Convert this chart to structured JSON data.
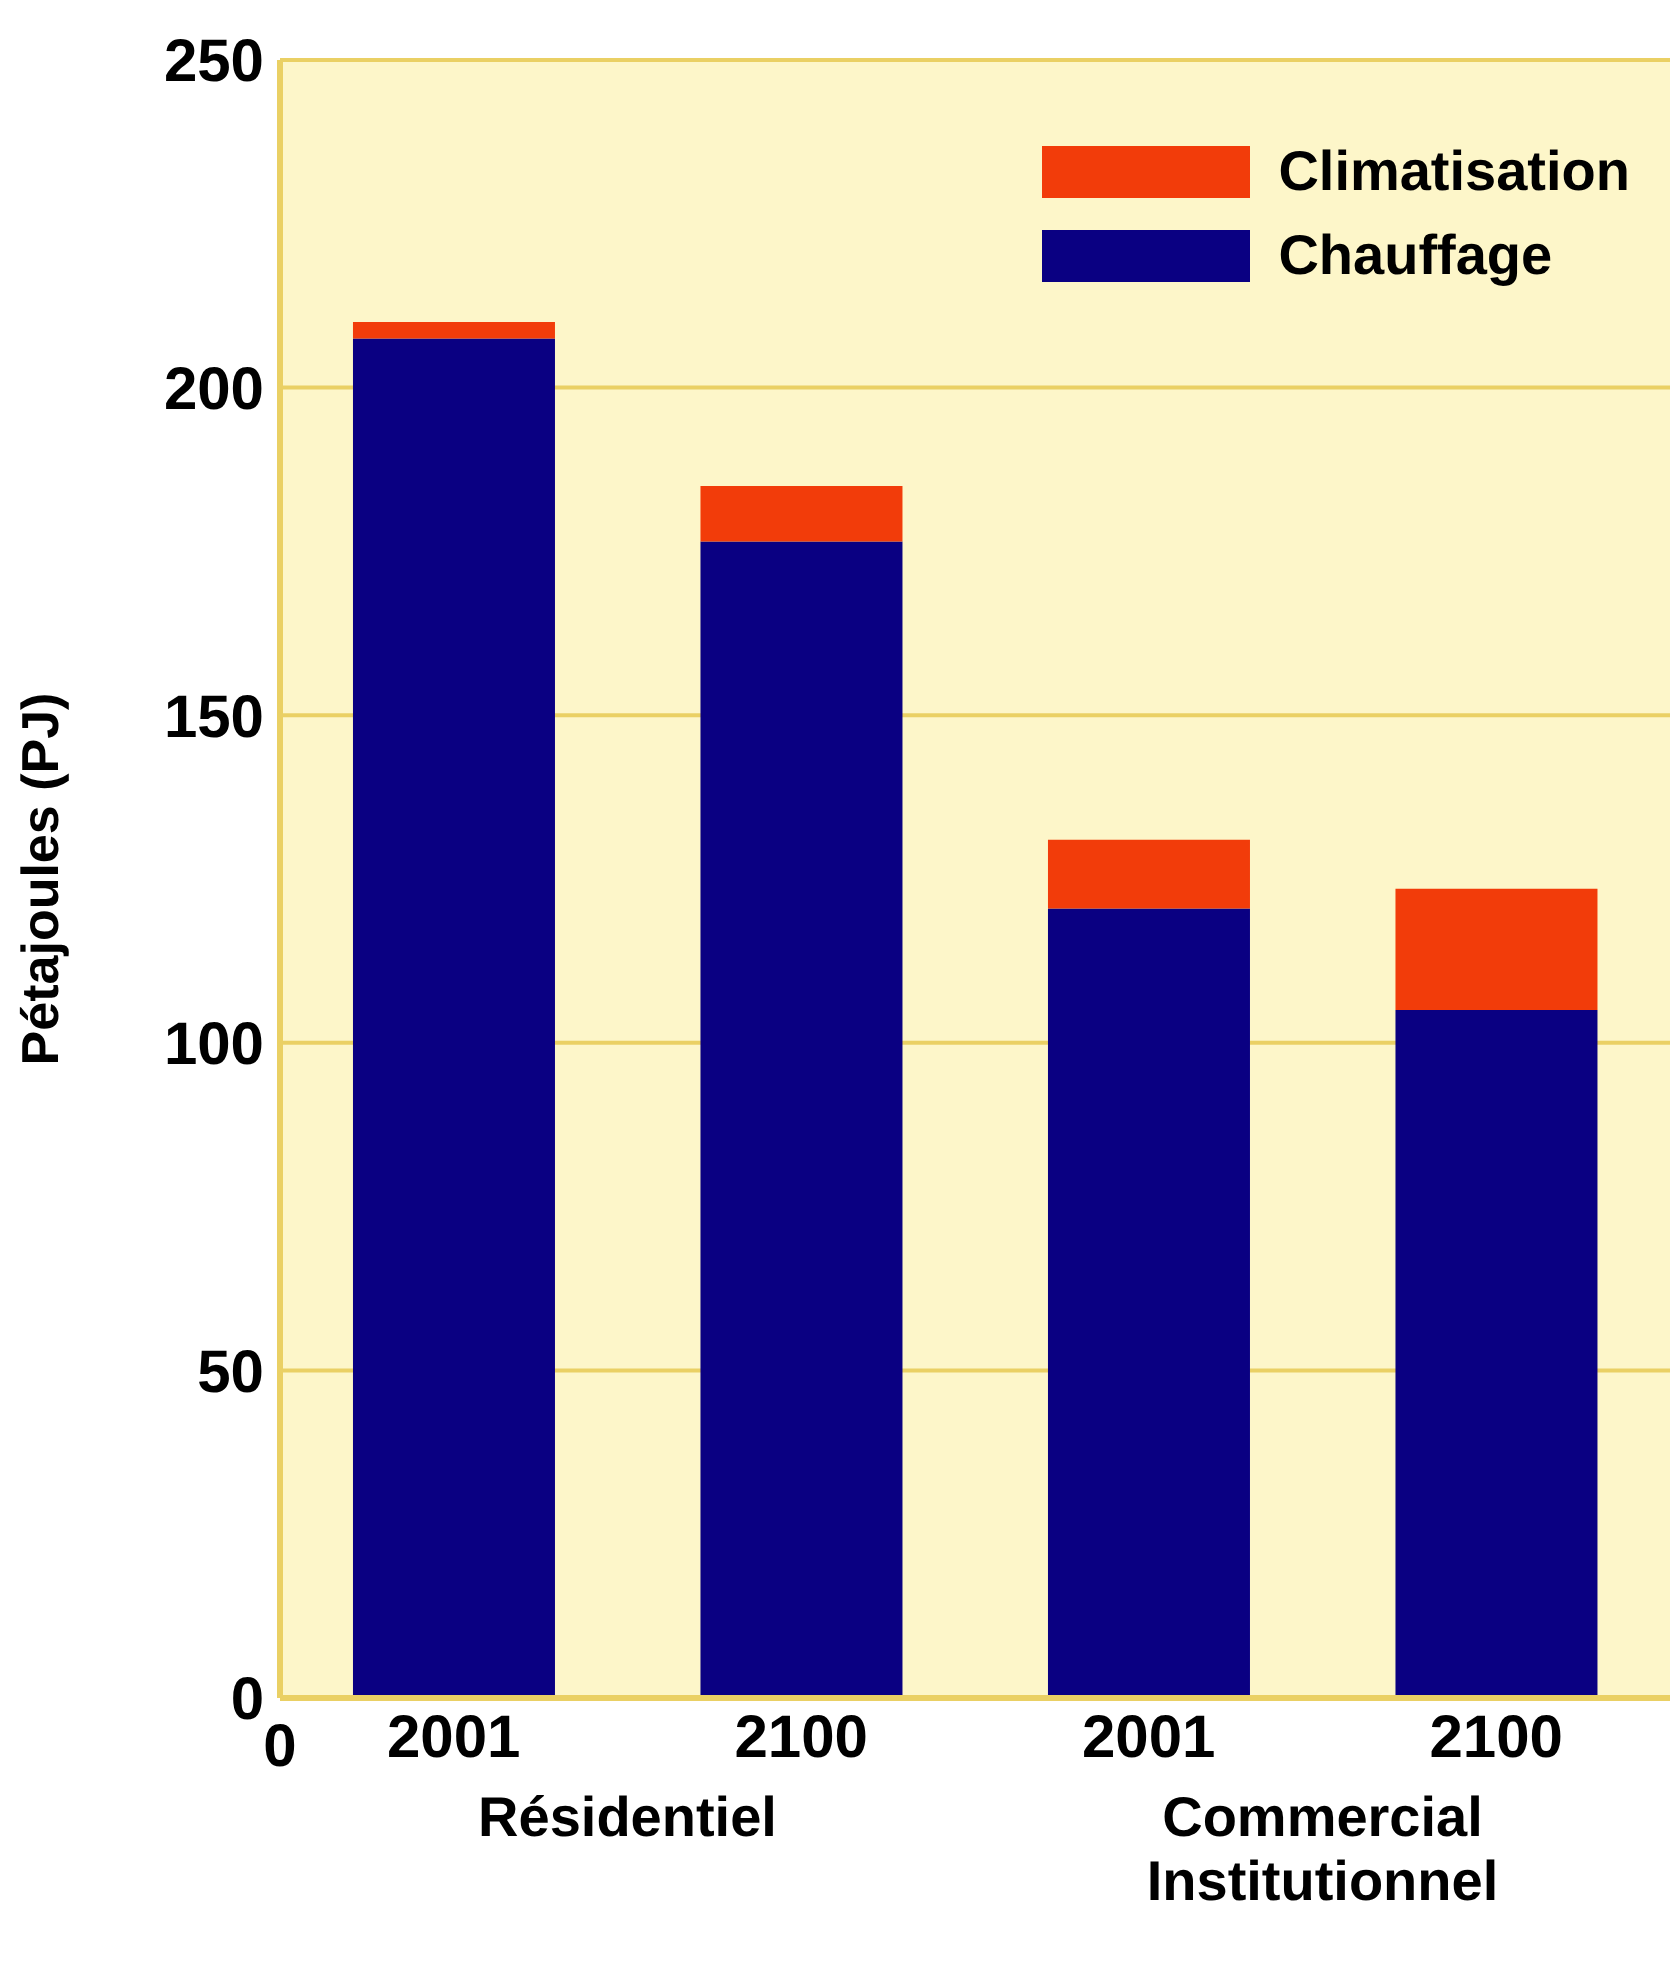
{
  "chart_data": {
    "type": "bar",
    "ylabel": "Pétajoules (PJ)",
    "categories": [
      "2001",
      "2100",
      "2001",
      "2100"
    ],
    "series": [
      {
        "name": "Chauffage",
        "color": "#0a0082",
        "values": [
          207.5,
          176.5,
          120.5,
          105
        ]
      },
      {
        "name": "Climatisation",
        "color": "#f23c0a",
        "values": [
          2.5,
          8.5,
          10.5,
          18.5
        ]
      }
    ],
    "stacked": true,
    "ylim": [
      0,
      250
    ],
    "yticks": [
      0,
      50,
      100,
      150,
      200,
      250
    ],
    "grid": "y",
    "legend": "top right",
    "annotations": [
      "Résidentiel",
      "Commercial\nInstitutionnel",
      "0"
    ]
  }
}
